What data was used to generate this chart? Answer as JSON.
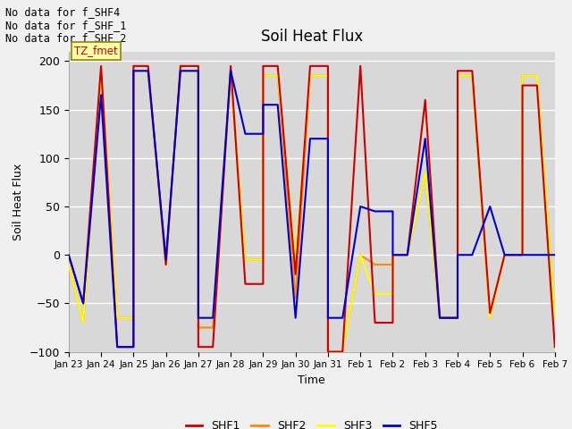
{
  "title": "Soil Heat Flux",
  "xlabel": "Time",
  "ylabel": "Soil Heat Flux",
  "ylim": [
    -100,
    210
  ],
  "yticks": [
    -100,
    -50,
    0,
    50,
    100,
    150,
    200
  ],
  "fig_bg": "#f0f0f0",
  "plot_bg": "#d8d8d8",
  "grid_color": "#ffffff",
  "annotations": [
    "No data for f_SHF4",
    "No data for f_SHF_1",
    "No data for f_SHF_2"
  ],
  "tz_label": "TZ_fmet",
  "legend_labels": [
    "SHF1",
    "SHF2",
    "SHF3",
    "SHF5"
  ],
  "legend_colors": [
    "#cc0000",
    "#ff8800",
    "#ffff00",
    "#0000cc"
  ],
  "xtick_labels": [
    "Jan 23",
    "Jan 24",
    "Jan 25",
    "Jan 26",
    "Jan 27",
    "Jan 28",
    "Jan 29",
    "Jan 30",
    "Jan 31",
    "Feb 1",
    "Feb 2",
    "Feb 3",
    "Feb 4",
    "Feb 5",
    "Feb 6",
    "Feb 7"
  ],
  "SHF1_x": [
    0,
    0.45,
    1,
    1,
    1.5,
    2,
    2,
    2.45,
    3,
    3,
    3.45,
    4,
    4,
    4.45,
    5,
    5,
    5.45,
    6,
    6,
    6.45,
    7,
    7,
    7.45,
    8,
    8,
    8.45,
    9,
    9,
    9.45,
    10,
    10,
    10.45,
    11,
    11,
    11.45,
    12,
    12,
    12.45,
    13,
    13,
    13.45,
    14,
    14,
    14.45,
    15
  ],
  "SHF1_y": [
    0,
    -50,
    195,
    195,
    -95,
    -95,
    195,
    195,
    -10,
    -10,
    195,
    195,
    -95,
    -95,
    195,
    195,
    -30,
    -30,
    195,
    195,
    -20,
    -20,
    195,
    195,
    -100,
    -100,
    195,
    195,
    -70,
    -70,
    0,
    0,
    160,
    160,
    -65,
    -65,
    190,
    190,
    -60,
    -60,
    0,
    0,
    175,
    175,
    -95
  ],
  "SHF2_x": [
    0,
    0.45,
    1,
    1,
    1.5,
    2,
    2,
    2.45,
    3,
    3,
    3.45,
    4,
    4,
    4.45,
    5,
    5,
    5.45,
    6,
    6,
    6.45,
    7,
    7,
    7.45,
    8,
    8,
    8.45,
    9,
    9,
    9.45,
    10,
    10,
    10.45,
    11,
    11,
    11.45,
    12,
    12,
    12.45,
    13,
    13,
    13.45,
    14,
    14,
    14.45,
    15
  ],
  "SHF2_y": [
    -10,
    -70,
    190,
    190,
    -65,
    -65,
    190,
    190,
    -10,
    -10,
    190,
    190,
    -75,
    -75,
    185,
    185,
    -5,
    -5,
    185,
    185,
    -45,
    -45,
    185,
    185,
    -100,
    -100,
    0,
    0,
    -10,
    -10,
    0,
    0,
    85,
    85,
    -65,
    -65,
    185,
    185,
    -65,
    -65,
    0,
    0,
    185,
    185,
    -65
  ],
  "SHF3_x": [
    0,
    0.45,
    1,
    1,
    1.5,
    2,
    2,
    2.45,
    3,
    3,
    3.45,
    4,
    4,
    4.45,
    5,
    5,
    5.45,
    6,
    6,
    6.45,
    7,
    7,
    7.45,
    8,
    8,
    8.45,
    9,
    9,
    9.45,
    10,
    10,
    10.45,
    11,
    11,
    11.45,
    12,
    12,
    12.45,
    13,
    13,
    13.45,
    14,
    14,
    14.45,
    15
  ],
  "SHF3_y": [
    -10,
    -70,
    190,
    190,
    -65,
    -65,
    190,
    190,
    -10,
    -10,
    190,
    190,
    -65,
    -65,
    185,
    185,
    -5,
    -5,
    185,
    185,
    -5,
    -5,
    185,
    185,
    -100,
    -100,
    0,
    0,
    -40,
    -40,
    0,
    0,
    85,
    85,
    -65,
    -65,
    185,
    185,
    -65,
    -65,
    0,
    0,
    185,
    185,
    -65
  ],
  "SHF5_x": [
    0,
    0.45,
    1,
    1,
    1.5,
    2,
    2,
    2.45,
    3,
    3,
    3.45,
    4,
    4,
    4.45,
    5,
    5,
    5.45,
    6,
    6,
    6.45,
    7,
    7,
    7.45,
    8,
    8,
    8.45,
    9,
    9,
    9.45,
    10,
    10,
    10.45,
    11,
    11,
    11.45,
    12,
    12,
    12.45,
    13,
    13,
    13.45,
    14,
    14,
    14.45,
    15
  ],
  "SHF5_y": [
    0,
    -50,
    165,
    165,
    -95,
    -95,
    190,
    190,
    -5,
    -5,
    190,
    190,
    -65,
    -65,
    190,
    190,
    125,
    125,
    155,
    155,
    -65,
    -65,
    120,
    120,
    -65,
    -65,
    50,
    50,
    45,
    45,
    0,
    0,
    120,
    120,
    -65,
    -65,
    0,
    0,
    50,
    50,
    0,
    0,
    0,
    0,
    0
  ]
}
